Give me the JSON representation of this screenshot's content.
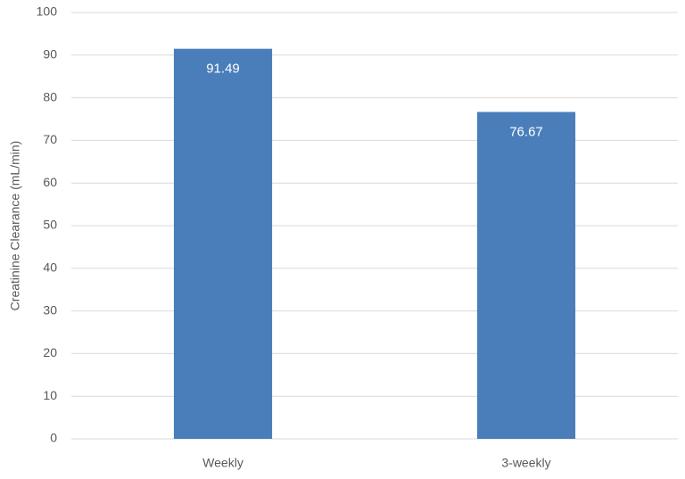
{
  "chart_data": {
    "type": "bar",
    "y_label": "Creatinine Clearance (mL/min)",
    "categories": [
      "Weekly",
      "3-weekly"
    ],
    "values": [
      91.49,
      76.67
    ],
    "color": "#4a7ebb",
    "ylim": [
      0,
      100
    ],
    "yticks": [
      0,
      10,
      20,
      30,
      40,
      50,
      60,
      70,
      80,
      90,
      100
    ],
    "grid": true,
    "data_labels": true
  }
}
